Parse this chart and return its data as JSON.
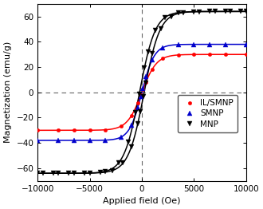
{
  "title": "",
  "xlabel": "Applied field (Oe)",
  "ylabel": "Magnetization (emu/g)",
  "xlim": [
    -10000,
    10000
  ],
  "ylim": [
    -70,
    70
  ],
  "xticks": [
    -10000,
    -5000,
    0,
    5000,
    10000
  ],
  "yticks": [
    -60,
    -40,
    -20,
    0,
    20,
    40,
    60
  ],
  "legend_labels": [
    "IL/SMNP",
    "SMNP",
    "MNP"
  ],
  "legend_colors": [
    "#ff0000",
    "#0000cc",
    "#000000"
  ],
  "background": "#ffffff",
  "MNP_Ms": 64.0,
  "MNP_a": 1500.0,
  "MNP_Hc": 220.0,
  "SMNP_Ms": 38.0,
  "SMNP_a": 1200.0,
  "SMNP_Hc": 100.0,
  "ILSMNP_Ms": 30.0,
  "ILSMNP_a": 1400.0,
  "ILSMNP_Hc": 80.0,
  "H_markers_ILSMNP": [
    -10000,
    -8000,
    -6500,
    -5000,
    -3500,
    -2000,
    -1000,
    -400,
    -100,
    100,
    400,
    1000,
    2000,
    3500,
    5000,
    6500,
    8000,
    10000
  ],
  "H_markers_SMNP": [
    -10000,
    -8000,
    -6500,
    -5000,
    -3500,
    -2000,
    -1000,
    -400,
    -100,
    100,
    400,
    1000,
    2000,
    3500,
    5000,
    6500,
    8000,
    10000
  ],
  "H_markers_MNP_up": [
    -10000,
    -8500,
    -7000,
    -5500,
    -4000,
    -2800,
    -1800,
    -1000,
    -400,
    -150,
    150,
    400,
    1000,
    1800,
    2800,
    4000,
    5500,
    7000,
    8500,
    10000
  ],
  "H_markers_MNP_dn": [
    9500,
    8000,
    6500,
    5000,
    3500,
    2200,
    1300,
    600,
    250,
    -250,
    -600,
    -1300,
    -2200,
    -3500,
    -5000,
    -6500,
    -8000,
    -9500
  ]
}
